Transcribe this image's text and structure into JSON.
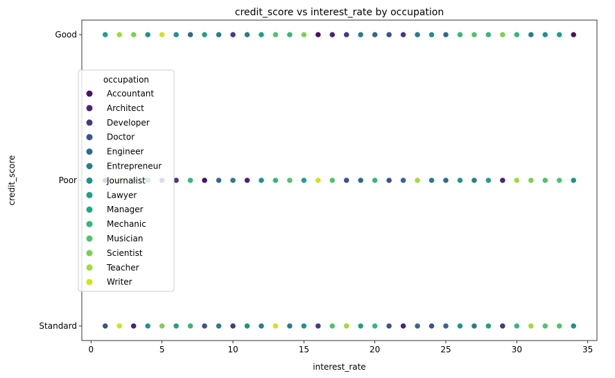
{
  "chart_data": {
    "type": "scatter",
    "title": "credit_score vs interest_rate by occupation",
    "xlabel": "interest_rate",
    "ylabel": "credit_score",
    "xlim": [
      -0.65,
      35.65
    ],
    "x_ticks": [
      0,
      5,
      10,
      15,
      20,
      25,
      30,
      35
    ],
    "y_categories": [
      "Good",
      "Poor",
      "Standard"
    ],
    "grid": false,
    "legend": {
      "title": "occupation",
      "placement": "center-left",
      "entries": [
        {
          "name": "Accountant",
          "color": "#471365"
        },
        {
          "name": "Architect",
          "color": "#482475"
        },
        {
          "name": "Developer",
          "color": "#443983"
        },
        {
          "name": "Doctor",
          "color": "#3b528b"
        },
        {
          "name": "Engineer",
          "color": "#31688e"
        },
        {
          "name": "Entrepreneur",
          "color": "#287c8e"
        },
        {
          "name": "Journalist",
          "color": "#21918c"
        },
        {
          "name": "Lawyer",
          "color": "#1fa088"
        },
        {
          "name": "Manager",
          "color": "#22a884"
        },
        {
          "name": "Mechanic",
          "color": "#35b779"
        },
        {
          "name": "Musician",
          "color": "#4ec36b"
        },
        {
          "name": "Scientist",
          "color": "#7ad151"
        },
        {
          "name": "Teacher",
          "color": "#a2da37"
        },
        {
          "name": "Writer",
          "color": "#d2e21b"
        }
      ]
    },
    "series": [
      {
        "category": "Good",
        "points": [
          [
            1,
            "Lawyer"
          ],
          [
            2,
            "Teacher"
          ],
          [
            3,
            "Scientist"
          ],
          [
            4,
            "Journalist"
          ],
          [
            5,
            "Writer"
          ],
          [
            6,
            "Journalist"
          ],
          [
            7,
            "Engineer"
          ],
          [
            8,
            "Lawyer"
          ],
          [
            9,
            "Entrepreneur"
          ],
          [
            10,
            "Developer"
          ],
          [
            11,
            "Entrepreneur"
          ],
          [
            12,
            "Lawyer"
          ],
          [
            13,
            "Musician"
          ],
          [
            14,
            "Mechanic"
          ],
          [
            15,
            "Scientist"
          ],
          [
            16,
            "Accountant"
          ],
          [
            17,
            "Architect"
          ],
          [
            18,
            "Developer"
          ],
          [
            19,
            "Entrepreneur"
          ],
          [
            20,
            "Engineer"
          ],
          [
            21,
            "Doctor"
          ],
          [
            22,
            "Developer"
          ],
          [
            23,
            "Entrepreneur"
          ],
          [
            24,
            "Journalist"
          ],
          [
            25,
            "Engineer"
          ],
          [
            26,
            "Mechanic"
          ],
          [
            27,
            "Musician"
          ],
          [
            28,
            "Mechanic"
          ],
          [
            29,
            "Scientist"
          ],
          [
            30,
            "Mechanic"
          ],
          [
            31,
            "Entrepreneur"
          ],
          [
            32,
            "Journalist"
          ],
          [
            33,
            "Lawyer"
          ],
          [
            34,
            "Accountant"
          ]
        ]
      },
      {
        "category": "Poor",
        "points": [
          [
            1,
            "Developer"
          ],
          [
            2,
            "Teacher"
          ],
          [
            3,
            "Journalist"
          ],
          [
            4,
            "Lawyer"
          ],
          [
            5,
            "Engineer"
          ],
          [
            6,
            "Developer"
          ],
          [
            7,
            "Mechanic"
          ],
          [
            8,
            "Accountant"
          ],
          [
            9,
            "Engineer"
          ],
          [
            10,
            "Entrepreneur"
          ],
          [
            11,
            "Architect"
          ],
          [
            12,
            "Journalist"
          ],
          [
            13,
            "Mechanic"
          ],
          [
            14,
            "Musician"
          ],
          [
            15,
            "Lawyer"
          ],
          [
            16,
            "Writer"
          ],
          [
            17,
            "Musician"
          ],
          [
            18,
            "Doctor"
          ],
          [
            19,
            "Engineer"
          ],
          [
            20,
            "Mechanic"
          ],
          [
            21,
            "Doctor"
          ],
          [
            22,
            "Engineer"
          ],
          [
            23,
            "Teacher"
          ],
          [
            24,
            "Entrepreneur"
          ],
          [
            25,
            "Engineer"
          ],
          [
            26,
            "Journalist"
          ],
          [
            27,
            "Entrepreneur"
          ],
          [
            28,
            "Lawyer"
          ],
          [
            29,
            "Architect"
          ],
          [
            30,
            "Teacher"
          ],
          [
            31,
            "Scientist"
          ],
          [
            32,
            "Musician"
          ],
          [
            33,
            "Musician"
          ],
          [
            34,
            "Journalist"
          ]
        ]
      },
      {
        "category": "Standard",
        "points": [
          [
            1,
            "Doctor"
          ],
          [
            2,
            "Writer"
          ],
          [
            3,
            "Architect"
          ],
          [
            4,
            "Journalist"
          ],
          [
            5,
            "Scientist"
          ],
          [
            6,
            "Lawyer"
          ],
          [
            7,
            "Mechanic"
          ],
          [
            8,
            "Doctor"
          ],
          [
            9,
            "Entrepreneur"
          ],
          [
            10,
            "Developer"
          ],
          [
            11,
            "Journalist"
          ],
          [
            12,
            "Entrepreneur"
          ],
          [
            13,
            "Writer"
          ],
          [
            14,
            "Entrepreneur"
          ],
          [
            15,
            "Journalist"
          ],
          [
            16,
            "Developer"
          ],
          [
            17,
            "Musician"
          ],
          [
            18,
            "Teacher"
          ],
          [
            19,
            "Lawyer"
          ],
          [
            20,
            "Mechanic"
          ],
          [
            21,
            "Doctor"
          ],
          [
            22,
            "Architect"
          ],
          [
            23,
            "Engineer"
          ],
          [
            24,
            "Doctor"
          ],
          [
            25,
            "Engineer"
          ],
          [
            26,
            "Journalist"
          ],
          [
            27,
            "Entrepreneur"
          ],
          [
            28,
            "Lawyer"
          ],
          [
            29,
            "Developer"
          ],
          [
            30,
            "Mechanic"
          ],
          [
            31,
            "Teacher"
          ],
          [
            32,
            "Musician"
          ],
          [
            33,
            "Musician"
          ],
          [
            34,
            "Journalist"
          ]
        ]
      }
    ]
  }
}
